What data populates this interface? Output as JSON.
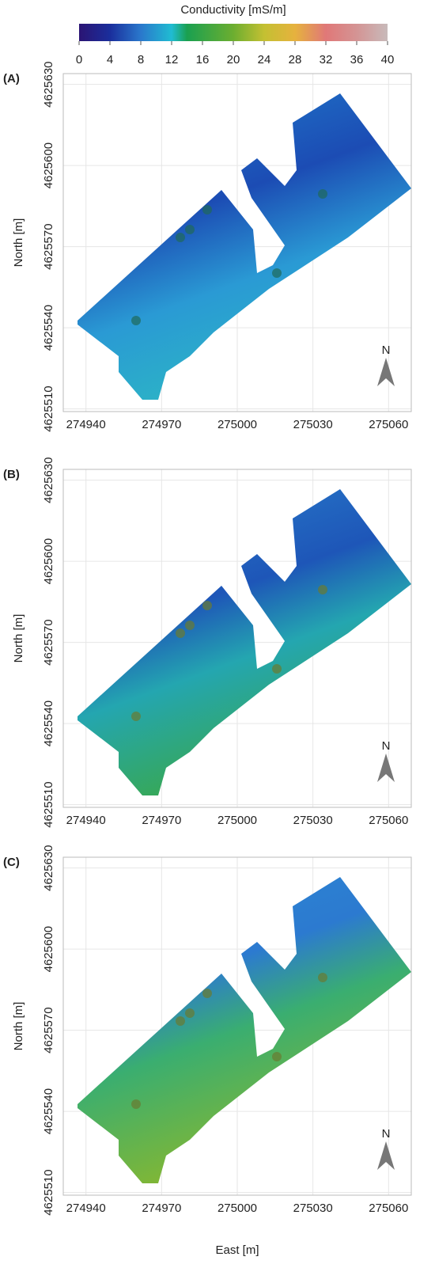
{
  "colorbar": {
    "title": "Conductivity [mS/m]",
    "lim": [
      0,
      40
    ],
    "ticks": [
      0,
      4,
      8,
      12,
      16,
      20,
      24,
      28,
      32,
      36,
      40
    ]
  },
  "panels": [
    {
      "label": "(A)"
    },
    {
      "label": "(B)"
    },
    {
      "label": "(C)"
    }
  ],
  "xlabel": "East [m]",
  "ylabel": "North [m]",
  "xlim": [
    274931,
    275069
  ],
  "xticks": [
    274940,
    274970,
    275000,
    275030,
    275060
  ],
  "ylim": [
    4625509,
    4625634
  ],
  "yticks": [
    4625510,
    4625540,
    4625570,
    4625600,
    4625630
  ],
  "grid": true,
  "north_arrow": "N"
}
